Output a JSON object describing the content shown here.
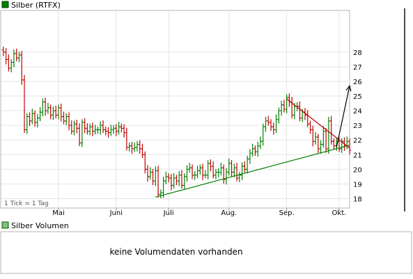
{
  "chart_data": {
    "type": "ohlc",
    "title": "Silber (RTFX)",
    "note": "1 Tick = 1 Tag",
    "colors": {
      "up": "#008000",
      "down": "#c00000",
      "trend_support": "#008000",
      "trend_resistance": "#c00000",
      "projection": "#000000"
    },
    "y_ticks": [
      "18",
      "19",
      "20",
      "21",
      "22",
      "23",
      "24",
      "25",
      "26",
      "27",
      "28"
    ],
    "ylim": [
      17.5,
      28.5
    ],
    "x_ticks": [
      "Mai",
      "Juni",
      "Juli",
      "Aug.",
      "Sep.",
      "Okt."
    ],
    "x_tick_index": [
      21,
      43,
      63,
      86,
      108,
      128
    ],
    "x_range": [
      -0.5,
      132
    ],
    "closes": [
      28.0,
      27.5,
      26.9,
      27.3,
      27.9,
      27.6,
      27.8,
      26.1,
      22.7,
      23.6,
      23.3,
      23.8,
      23.2,
      23.5,
      23.9,
      24.6,
      24.0,
      24.2,
      23.7,
      24.0,
      23.7,
      24.2,
      23.6,
      23.3,
      23.6,
      23.0,
      22.6,
      23.1,
      22.8,
      21.8,
      23.2,
      22.8,
      22.6,
      22.9,
      22.6,
      22.7,
      22.7,
      23.0,
      22.7,
      22.6,
      22.5,
      22.7,
      22.8,
      22.6,
      22.9,
      22.8,
      22.5,
      21.5,
      21.6,
      21.4,
      21.5,
      21.7,
      21.4,
      21.0,
      20.0,
      19.5,
      19.8,
      19.2,
      19.9,
      18.3,
      18.4,
      19.2,
      19.5,
      19.4,
      18.9,
      19.4,
      19.2,
      19.6,
      18.9,
      19.5,
      20.0,
      20.1,
      19.6,
      19.6,
      19.9,
      20.1,
      19.6,
      19.6,
      20.4,
      20.2,
      19.6,
      19.8,
      19.8,
      20.1,
      19.3,
      19.8,
      20.4,
      19.8,
      20.1,
      19.4,
      19.6,
      20.2,
      20.0,
      20.7,
      21.1,
      21.4,
      21.2,
      21.6,
      21.9,
      22.9,
      23.3,
      23.2,
      22.9,
      22.7,
      23.4,
      24.0,
      24.4,
      24.1,
      24.9,
      24.6,
      23.7,
      24.3,
      24.3,
      23.5,
      23.9,
      23.7,
      23.1,
      22.7,
      21.9,
      22.2,
      21.4,
      21.7,
      22.6,
      21.4,
      23.3,
      21.9,
      21.6,
      21.9,
      21.4,
      21.9,
      21.6,
      21.9,
      21.3
    ],
    "trendlines": [
      {
        "kind": "support",
        "from": [
          58,
          18.1
        ],
        "to": [
          132,
          21.65
        ]
      },
      {
        "kind": "resistance",
        "from": [
          108,
          24.8
        ],
        "to": [
          132,
          21.45
        ]
      },
      {
        "kind": "projection",
        "from": [
          127,
          21.5
        ],
        "to": [
          132,
          25.7
        ]
      }
    ]
  },
  "volume_panel": {
    "title": "Silber Volumen",
    "message": "keine Volumendaten vorhanden"
  }
}
